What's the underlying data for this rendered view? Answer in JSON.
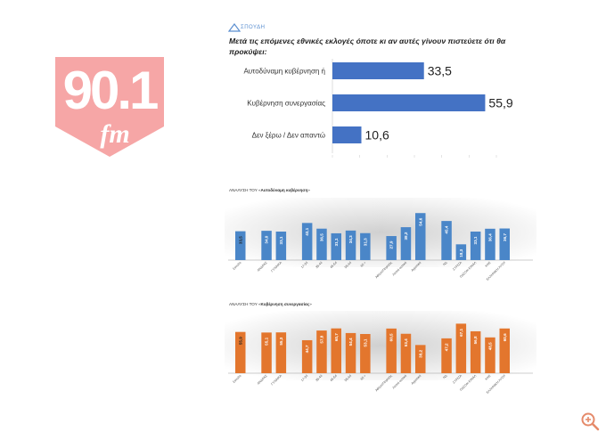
{
  "logo": {
    "number": "90.1",
    "suffix": "fm"
  },
  "source": {
    "brand": "ΣΠΟΥΔΗ"
  },
  "question": "Μετά τις επόμενες εθνικές εκλογές όποτε κι αν αυτές γίνουν πιστεύετε ότι θα προκύψει:",
  "colors": {
    "blue": "#4a86c8",
    "orange": "#e3762d",
    "logo_pink": "#f4a3a3",
    "main_bar": "#4472c4"
  },
  "chart_data": [
    {
      "type": "bar",
      "orientation": "horizontal",
      "categories": [
        "Αυτοδύναμη κυβέρνηση ή",
        "Κυβέρνηση συνεργασίας",
        "Δεν ξέρω / Δεν απαντώ"
      ],
      "values": [
        33.5,
        55.9,
        10.6
      ],
      "value_labels": [
        "33,5",
        "55,9",
        "10,6"
      ],
      "xlim": [
        0,
        60
      ]
    },
    {
      "type": "bar",
      "title_prefix": "ΑΝΑΛΥΣΗ ΤΟΥ «",
      "title_bold": "Αυτοδύναμη κυβέρνηση",
      "title_suffix": "»",
      "groups": [
        {
          "categories": [
            "Σύνολο"
          ],
          "values": [
            33.5
          ],
          "labels": [
            "33,5"
          ]
        },
        {
          "categories": [
            "ΑΝΔΡΑΣ",
            "ΓΥΝΑΙΚΑ"
          ],
          "values": [
            34.0,
            33.1
          ],
          "labels": [
            "34,0",
            "33,1"
          ]
        },
        {
          "categories": [
            "17-34",
            "35-44",
            "45-54",
            "55-64",
            "65 +"
          ],
          "values": [
            43.1,
            36.5,
            31.1,
            34.3,
            31.3
          ],
          "labels": [
            "43,1",
            "36,5",
            "31,1",
            "34,3",
            "31,3"
          ]
        },
        {
          "categories": [
            "Αθήνα/Πειραιάς",
            "Λοιπά αστικά",
            "Αγροτικά"
          ],
          "values": [
            27.9,
            38.2,
            54.6
          ],
          "labels": [
            "27,9",
            "38,2",
            "54,6"
          ]
        },
        {
          "categories": [
            "ΝΔ",
            "ΣΥΡΙΖΑ",
            "ΠΑΣΟΚ-ΚΙΝΑΛ",
            "ΚΚΕ",
            "ΕΛΛΗΝΙΚΗ ΛΥΣΗ"
          ],
          "values": [
            45.4,
            18.3,
            33.1,
            36.4,
            36.7
          ],
          "labels": [
            "45,4",
            "18,3",
            "33,1",
            "36,4",
            "36,7"
          ]
        }
      ],
      "ylim": [
        0,
        60
      ]
    },
    {
      "type": "bar",
      "title_prefix": "ΑΝΑΛΥΣΗ ΤΟΥ «",
      "title_bold": "Κυβέρνηση συνεργασίας",
      "title_suffix": "»",
      "groups": [
        {
          "categories": [
            "Σύνολο"
          ],
          "values": [
            55.9
          ],
          "labels": [
            "55,9"
          ]
        },
        {
          "categories": [
            "ΑΝΔΡΑΣ",
            "ΓΥΝΑΙΚΑ"
          ],
          "values": [
            55.1,
            55.3
          ],
          "labels": [
            "55,1",
            "55,3"
          ]
        },
        {
          "categories": [
            "17-34",
            "35-44",
            "45-54",
            "55-64",
            "65 +"
          ],
          "values": [
            44.7,
            57.8,
            60.7,
            54.4,
            53.1
          ],
          "labels": [
            "44,7",
            "57,8",
            "60,7",
            "54,4",
            "53,1"
          ]
        },
        {
          "categories": [
            "Αθήνα/Πειραιάς",
            "Λοιπά αστικά",
            "Αγροτικά"
          ],
          "values": [
            60.5,
            53.4,
            38.2
          ],
          "labels": [
            "60,5",
            "53,4",
            "38,2"
          ]
        },
        {
          "categories": [
            "ΝΔ",
            "ΣΥΡΙΖΑ",
            "ΠΑΣΟΚ-ΚΙΝΑΛ",
            "ΚΚΕ",
            "ΕΛΛΗΝΙΚΗ ΛΥΣΗ"
          ],
          "values": [
            47.2,
            67.1,
            56.8,
            48.5,
            60.6
          ],
          "labels": [
            "47,2",
            "67,1",
            "56,8",
            "48,5",
            "60,6"
          ]
        }
      ],
      "ylim": [
        0,
        70
      ]
    }
  ],
  "controls": {
    "zoom": "zoom-in-icon"
  }
}
